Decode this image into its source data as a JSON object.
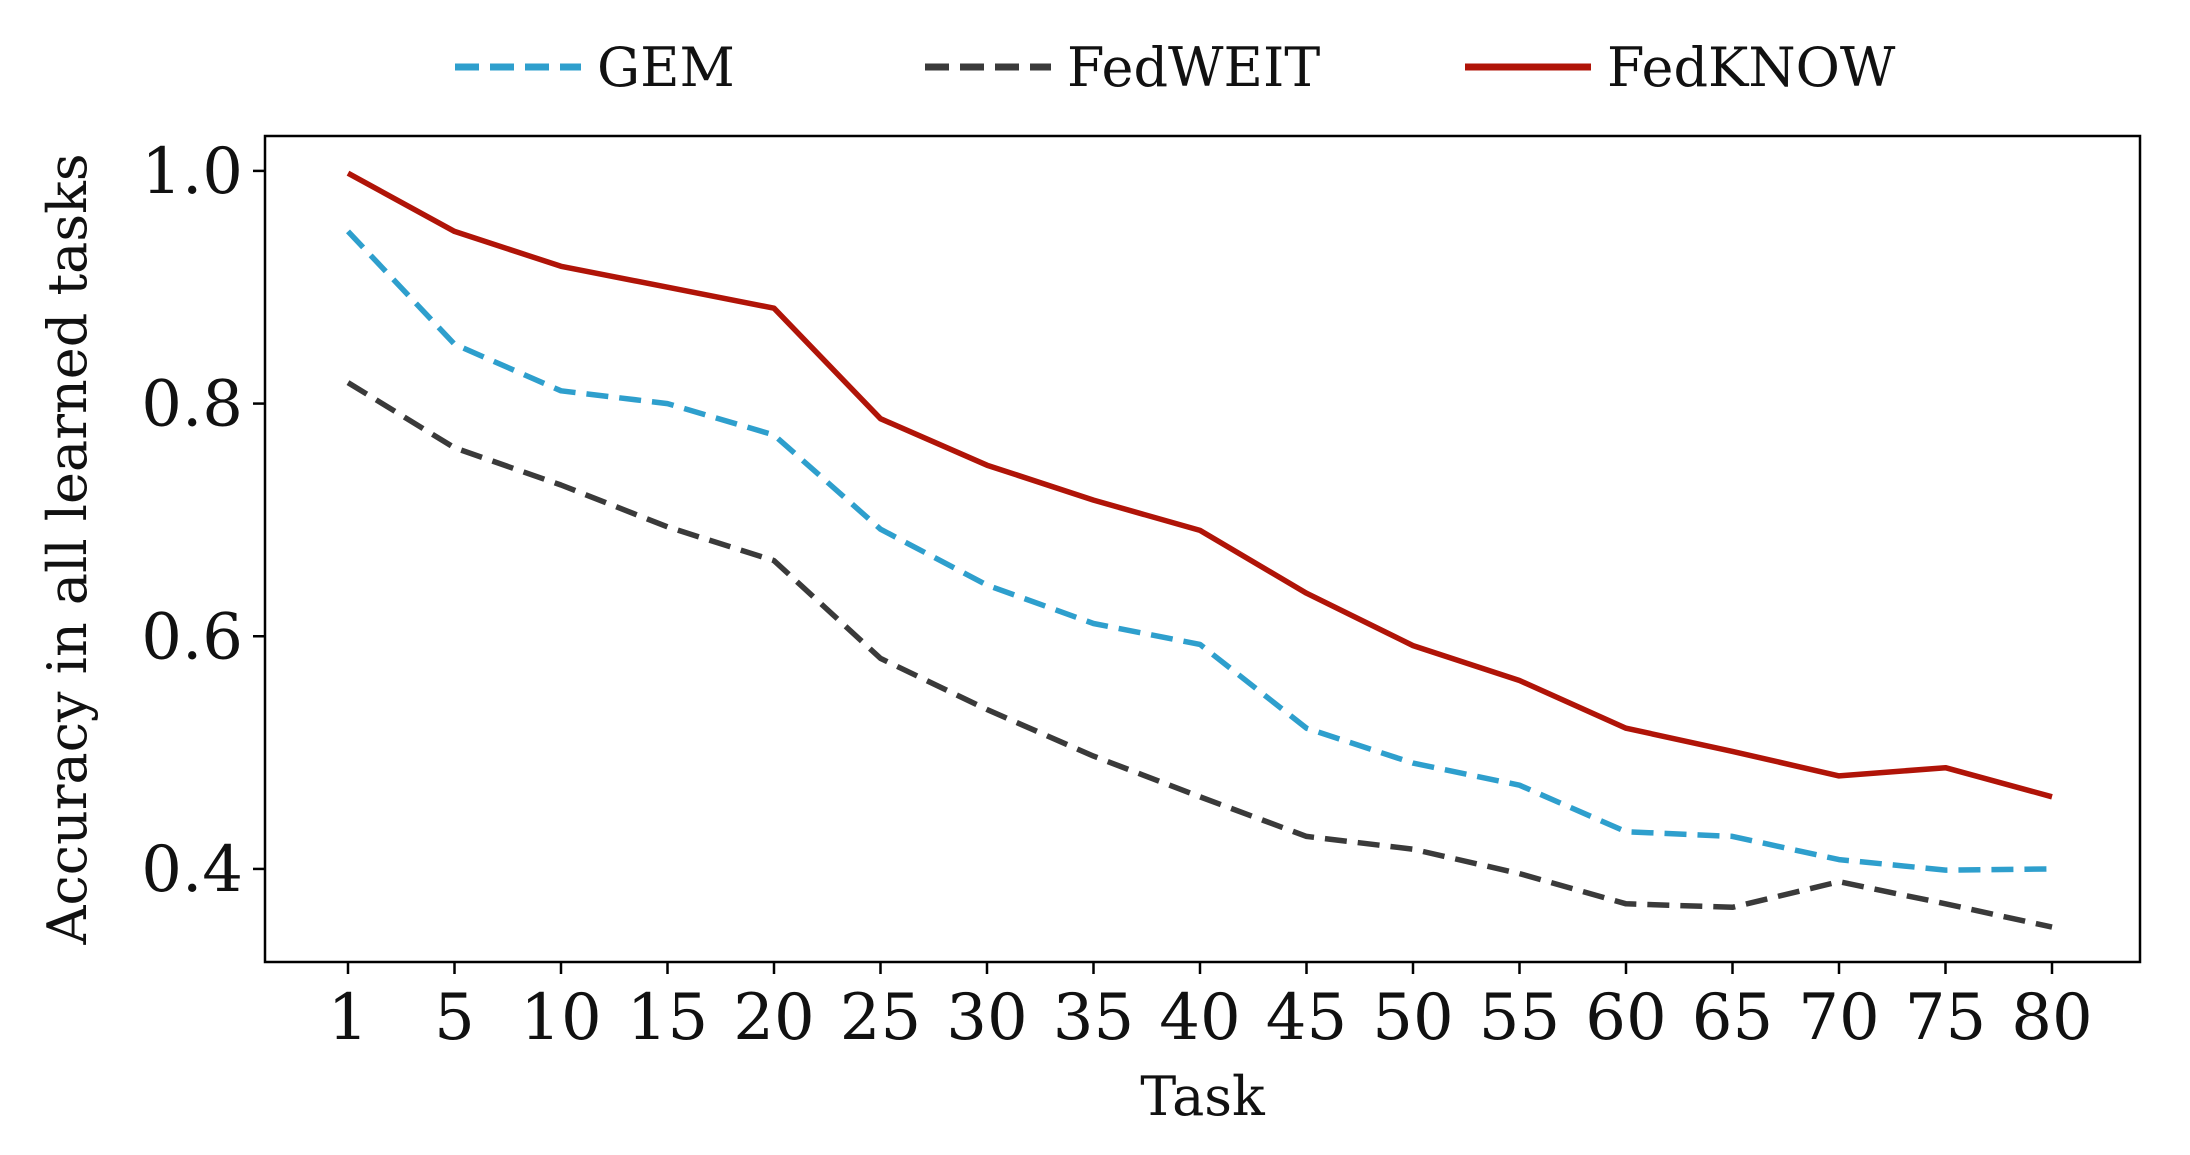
{
  "chart_data": {
    "type": "line",
    "title": "",
    "xlabel": "Task",
    "ylabel": "Accuracy in all learned tasks",
    "categories": [
      "1",
      "5",
      "10",
      "15",
      "20",
      "25",
      "30",
      "35",
      "40",
      "45",
      "50",
      "55",
      "60",
      "65",
      "70",
      "75",
      "80"
    ],
    "ylim": [
      0.32,
      1.03
    ],
    "yticks": [
      "0.4",
      "0.6",
      "0.8",
      "1.0"
    ],
    "ytick_values": [
      0.4,
      0.6,
      0.8,
      1.0
    ],
    "grid": false,
    "legend_position": "top-center",
    "series": [
      {
        "name": "GEM",
        "color": "#2e9fcd",
        "style": "dashed",
        "values": [
          0.948,
          0.851,
          0.811,
          0.8,
          0.773,
          0.692,
          0.644,
          0.611,
          0.593,
          0.521,
          0.491,
          0.472,
          0.432,
          0.428,
          0.408,
          0.399,
          0.4
        ]
      },
      {
        "name": "FedWEIT",
        "color": "#3a3a3a",
        "style": "dashed",
        "values": [
          0.818,
          0.762,
          0.73,
          0.694,
          0.665,
          0.581,
          0.537,
          0.497,
          0.462,
          0.428,
          0.417,
          0.396,
          0.37,
          0.367,
          0.389,
          0.37,
          0.35
        ]
      },
      {
        "name": "FedKNOW",
        "color": "#b01408",
        "style": "solid",
        "values": [
          0.998,
          0.948,
          0.918,
          0.9,
          0.882,
          0.787,
          0.747,
          0.717,
          0.691,
          0.637,
          0.592,
          0.562,
          0.521,
          0.501,
          0.48,
          0.487,
          0.462
        ]
      }
    ]
  }
}
